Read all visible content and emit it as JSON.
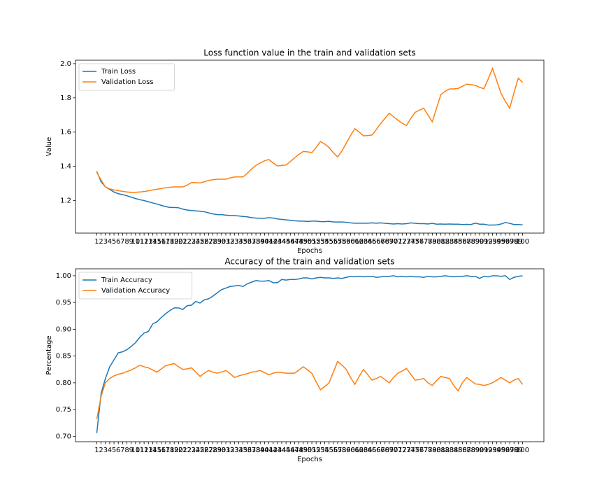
{
  "chart_data": [
    {
      "type": "line",
      "title": "Loss function value in the train and validation sets",
      "xlabel": "Epochs",
      "ylabel": "Value",
      "x": [
        1,
        2,
        3,
        4,
        5,
        6,
        7,
        8,
        9,
        10,
        11,
        12,
        13,
        14,
        15,
        16,
        17,
        18,
        19,
        20,
        21,
        22,
        23,
        24,
        25,
        26,
        27,
        28,
        29,
        30,
        31,
        32,
        33,
        34,
        35,
        36,
        37,
        38,
        39,
        40,
        41,
        42,
        43,
        44,
        45,
        46,
        47,
        48,
        49,
        50,
        51,
        52,
        53,
        54,
        55,
        56,
        57,
        58,
        59,
        60,
        61,
        62,
        63,
        64,
        65,
        66,
        67,
        68,
        69,
        70,
        71,
        72,
        73,
        74,
        75,
        76,
        77,
        78,
        79,
        80,
        81,
        82,
        83,
        84,
        85,
        86,
        87,
        88,
        89,
        90,
        91,
        92,
        93,
        94,
        95,
        96,
        97,
        98,
        99,
        100
      ],
      "xticks": [
        1,
        2,
        3,
        4,
        5,
        6,
        7,
        8,
        9,
        10,
        11,
        12,
        13,
        14,
        15,
        16,
        17,
        18,
        19,
        20,
        21,
        22,
        23,
        24,
        25,
        26,
        27,
        28,
        29,
        30,
        31,
        32,
        33,
        34,
        35,
        36,
        37,
        38,
        39,
        40,
        41,
        42,
        43,
        44,
        45,
        46,
        47,
        48,
        49,
        50,
        51,
        52,
        53,
        54,
        55,
        56,
        57,
        58,
        59,
        60,
        61,
        62,
        63,
        64,
        65,
        66,
        67,
        68,
        69,
        70,
        71,
        72,
        73,
        74,
        75,
        76,
        77,
        78,
        79,
        80,
        81,
        82,
        83,
        84,
        85,
        86,
        87,
        88,
        89,
        90,
        91,
        92,
        93,
        94,
        95,
        96,
        97,
        98,
        99,
        100
      ],
      "xlim": [
        -3.95,
        104.95
      ],
      "ylim": [
        1.01,
        2.02
      ],
      "yticks": [
        1.2,
        1.4,
        1.6,
        1.8,
        {
          "value": 2,
          "label": "2.0"
        }
      ],
      "legend": "upper left",
      "series": [
        {
          "name": "Train Loss",
          "color": "#1f77b4",
          "values": [
            1.37,
            1.31,
            1.28,
            1.265,
            1.25,
            1.24,
            1.235,
            1.228,
            1.22,
            1.212,
            1.205,
            1.2,
            1.193,
            1.186,
            1.18,
            1.172,
            1.165,
            1.16,
            1.16,
            1.158,
            1.15,
            1.145,
            1.142,
            1.14,
            1.138,
            1.135,
            1.128,
            1.122,
            1.118,
            1.118,
            1.115,
            1.113,
            1.112,
            1.11,
            1.107,
            1.105,
            1.1,
            1.098,
            1.097,
            1.097,
            1.1,
            1.098,
            1.093,
            1.09,
            1.087,
            1.085,
            1.082,
            1.08,
            1.08,
            1.078,
            1.08,
            1.08,
            1.077,
            1.077,
            1.079,
            1.075,
            1.075,
            1.075,
            1.073,
            1.07,
            1.068,
            1.068,
            1.068,
            1.068,
            1.07,
            1.068,
            1.07,
            1.067,
            1.065,
            1.063,
            1.065,
            1.063,
            1.065,
            1.07,
            1.067,
            1.065,
            1.065,
            1.063,
            1.067,
            1.062,
            1.063,
            1.062,
            1.063,
            1.062,
            1.062,
            1.06,
            1.061,
            1.06,
            1.068,
            1.062,
            1.062,
            1.057,
            1.057,
            1.058,
            1.063,
            1.072,
            1.067,
            1.06,
            1.06,
            1.058
          ]
        },
        {
          "name": "Validation Loss",
          "color": "#ff7f0e",
          "values": [
            1.365,
            1.32,
            1.28,
            1.268,
            1.262,
            1.258,
            1.254,
            1.25,
            1.248,
            1.248,
            1.25,
            1.253,
            1.257,
            1.262,
            1.266,
            1.27,
            1.275,
            1.278,
            1.28,
            1.28,
            1.28,
            1.29,
            1.305,
            1.305,
            1.303,
            1.31,
            1.318,
            1.322,
            1.325,
            1.325,
            1.325,
            1.332,
            1.338,
            1.338,
            1.338,
            1.36,
            1.385,
            1.405,
            1.42,
            1.432,
            1.44,
            1.42,
            1.402,
            1.405,
            1.408,
            1.428,
            1.45,
            1.47,
            1.487,
            1.485,
            1.48,
            1.51,
            1.545,
            1.53,
            1.51,
            1.48,
            1.455,
            1.49,
            1.535,
            1.58,
            1.62,
            1.6,
            1.578,
            1.58,
            1.583,
            1.615,
            1.65,
            1.68,
            1.71,
            1.69,
            1.67,
            1.652,
            1.638,
            1.68,
            1.715,
            1.728,
            1.74,
            1.7,
            1.66,
            1.74,
            1.82,
            1.838,
            1.852,
            1.853,
            1.855,
            1.868,
            1.88,
            1.877,
            1.873,
            1.862,
            1.853,
            1.91,
            1.972,
            1.9,
            1.825,
            1.78,
            1.74,
            1.83,
            1.915,
            1.89
          ]
        }
      ]
    },
    {
      "type": "line",
      "title": "Accuracy of the train and validation sets",
      "xlabel": "Epochs",
      "ylabel": "Percentage",
      "x": [
        1,
        2,
        3,
        4,
        5,
        6,
        7,
        8,
        9,
        10,
        11,
        12,
        13,
        14,
        15,
        16,
        17,
        18,
        19,
        20,
        21,
        22,
        23,
        24,
        25,
        26,
        27,
        28,
        29,
        30,
        31,
        32,
        33,
        34,
        35,
        36,
        37,
        38,
        39,
        40,
        41,
        42,
        43,
        44,
        45,
        46,
        47,
        48,
        49,
        50,
        51,
        52,
        53,
        54,
        55,
        56,
        57,
        58,
        59,
        60,
        61,
        62,
        63,
        64,
        65,
        66,
        67,
        68,
        69,
        70,
        71,
        72,
        73,
        74,
        75,
        76,
        77,
        78,
        79,
        80,
        81,
        82,
        83,
        84,
        85,
        86,
        87,
        88,
        89,
        90,
        91,
        92,
        93,
        94,
        95,
        96,
        97,
        98,
        99,
        100
      ],
      "xticks": [
        1,
        2,
        3,
        4,
        5,
        6,
        7,
        8,
        9,
        10,
        11,
        12,
        13,
        14,
        15,
        16,
        17,
        18,
        19,
        20,
        21,
        22,
        23,
        24,
        25,
        26,
        27,
        28,
        29,
        30,
        31,
        32,
        33,
        34,
        35,
        36,
        37,
        38,
        39,
        40,
        41,
        42,
        43,
        44,
        45,
        46,
        47,
        48,
        49,
        50,
        51,
        52,
        53,
        54,
        55,
        56,
        57,
        58,
        59,
        60,
        61,
        62,
        63,
        64,
        65,
        66,
        67,
        68,
        69,
        70,
        71,
        72,
        73,
        74,
        75,
        76,
        77,
        78,
        79,
        80,
        81,
        82,
        83,
        84,
        85,
        86,
        87,
        88,
        89,
        90,
        91,
        92,
        93,
        94,
        95,
        96,
        97,
        98,
        99,
        100
      ],
      "xlim": [
        -3.95,
        104.95
      ],
      "ylim": [
        0.69,
        1.013
      ],
      "yticks": [
        {
          "value": 0.7,
          "label": "0.70"
        },
        0.75,
        {
          "value": 0.8,
          "label": "0.80"
        },
        0.85,
        {
          "value": 0.9,
          "label": "0.90"
        },
        0.95,
        {
          "value": 1,
          "label": "1.00"
        }
      ],
      "legend": "upper left",
      "series": [
        {
          "name": "Train Accuracy",
          "color": "#1f77b4",
          "values": [
            0.706,
            0.78,
            0.808,
            0.83,
            0.843,
            0.856,
            0.858,
            0.862,
            0.868,
            0.875,
            0.885,
            0.893,
            0.896,
            0.91,
            0.914,
            0.922,
            0.929,
            0.935,
            0.94,
            0.94,
            0.937,
            0.944,
            0.945,
            0.952,
            0.949,
            0.955,
            0.957,
            0.962,
            0.968,
            0.974,
            0.977,
            0.98,
            0.981,
            0.982,
            0.98,
            0.985,
            0.988,
            0.991,
            0.99,
            0.99,
            0.991,
            0.987,
            0.987,
            0.993,
            0.992,
            0.993,
            0.993,
            0.994,
            0.996,
            0.996,
            0.994,
            0.996,
            0.997,
            0.996,
            0.996,
            0.995,
            0.996,
            0.995,
            0.997,
            0.999,
            0.998,
            0.999,
            0.998,
            0.999,
            0.999,
            0.997,
            0.998,
            0.999,
            0.999,
            1.0,
            0.998,
            0.999,
            0.998,
            0.999,
            0.998,
            0.998,
            0.997,
            0.999,
            0.998,
            0.998,
            0.999,
            1.0,
            0.999,
            0.998,
            0.999,
            0.999,
            1.0,
            0.999,
            0.999,
            0.995,
            0.999,
            0.998,
            1.0,
            1.0,
            0.999,
            1.0,
            0.993,
            0.997,
            0.999,
            1.0
          ]
        },
        {
          "name": "Validation Accuracy",
          "color": "#ff7f0e",
          "values": [
            0.732,
            0.775,
            0.8,
            0.808,
            0.813,
            0.816,
            0.818,
            0.821,
            0.824,
            0.828,
            0.833,
            0.83,
            0.828,
            0.824,
            0.82,
            0.826,
            0.832,
            0.834,
            0.836,
            0.83,
            0.825,
            0.826,
            0.828,
            0.82,
            0.812,
            0.818,
            0.823,
            0.82,
            0.818,
            0.82,
            0.823,
            0.817,
            0.81,
            0.813,
            0.815,
            0.817,
            0.82,
            0.821,
            0.823,
            0.819,
            0.815,
            0.818,
            0.82,
            0.819,
            0.818,
            0.818,
            0.818,
            0.824,
            0.83,
            0.824,
            0.818,
            0.802,
            0.787,
            0.793,
            0.8,
            0.82,
            0.84,
            0.833,
            0.825,
            0.81,
            0.797,
            0.812,
            0.825,
            0.815,
            0.805,
            0.808,
            0.812,
            0.806,
            0.8,
            0.81,
            0.818,
            0.822,
            0.827,
            0.816,
            0.805,
            0.806,
            0.808,
            0.8,
            0.795,
            0.804,
            0.812,
            0.81,
            0.808,
            0.795,
            0.785,
            0.8,
            0.81,
            0.804,
            0.798,
            0.797,
            0.795,
            0.797,
            0.8,
            0.805,
            0.81,
            0.805,
            0.8,
            0.805,
            0.808,
            0.797
          ]
        }
      ]
    }
  ]
}
